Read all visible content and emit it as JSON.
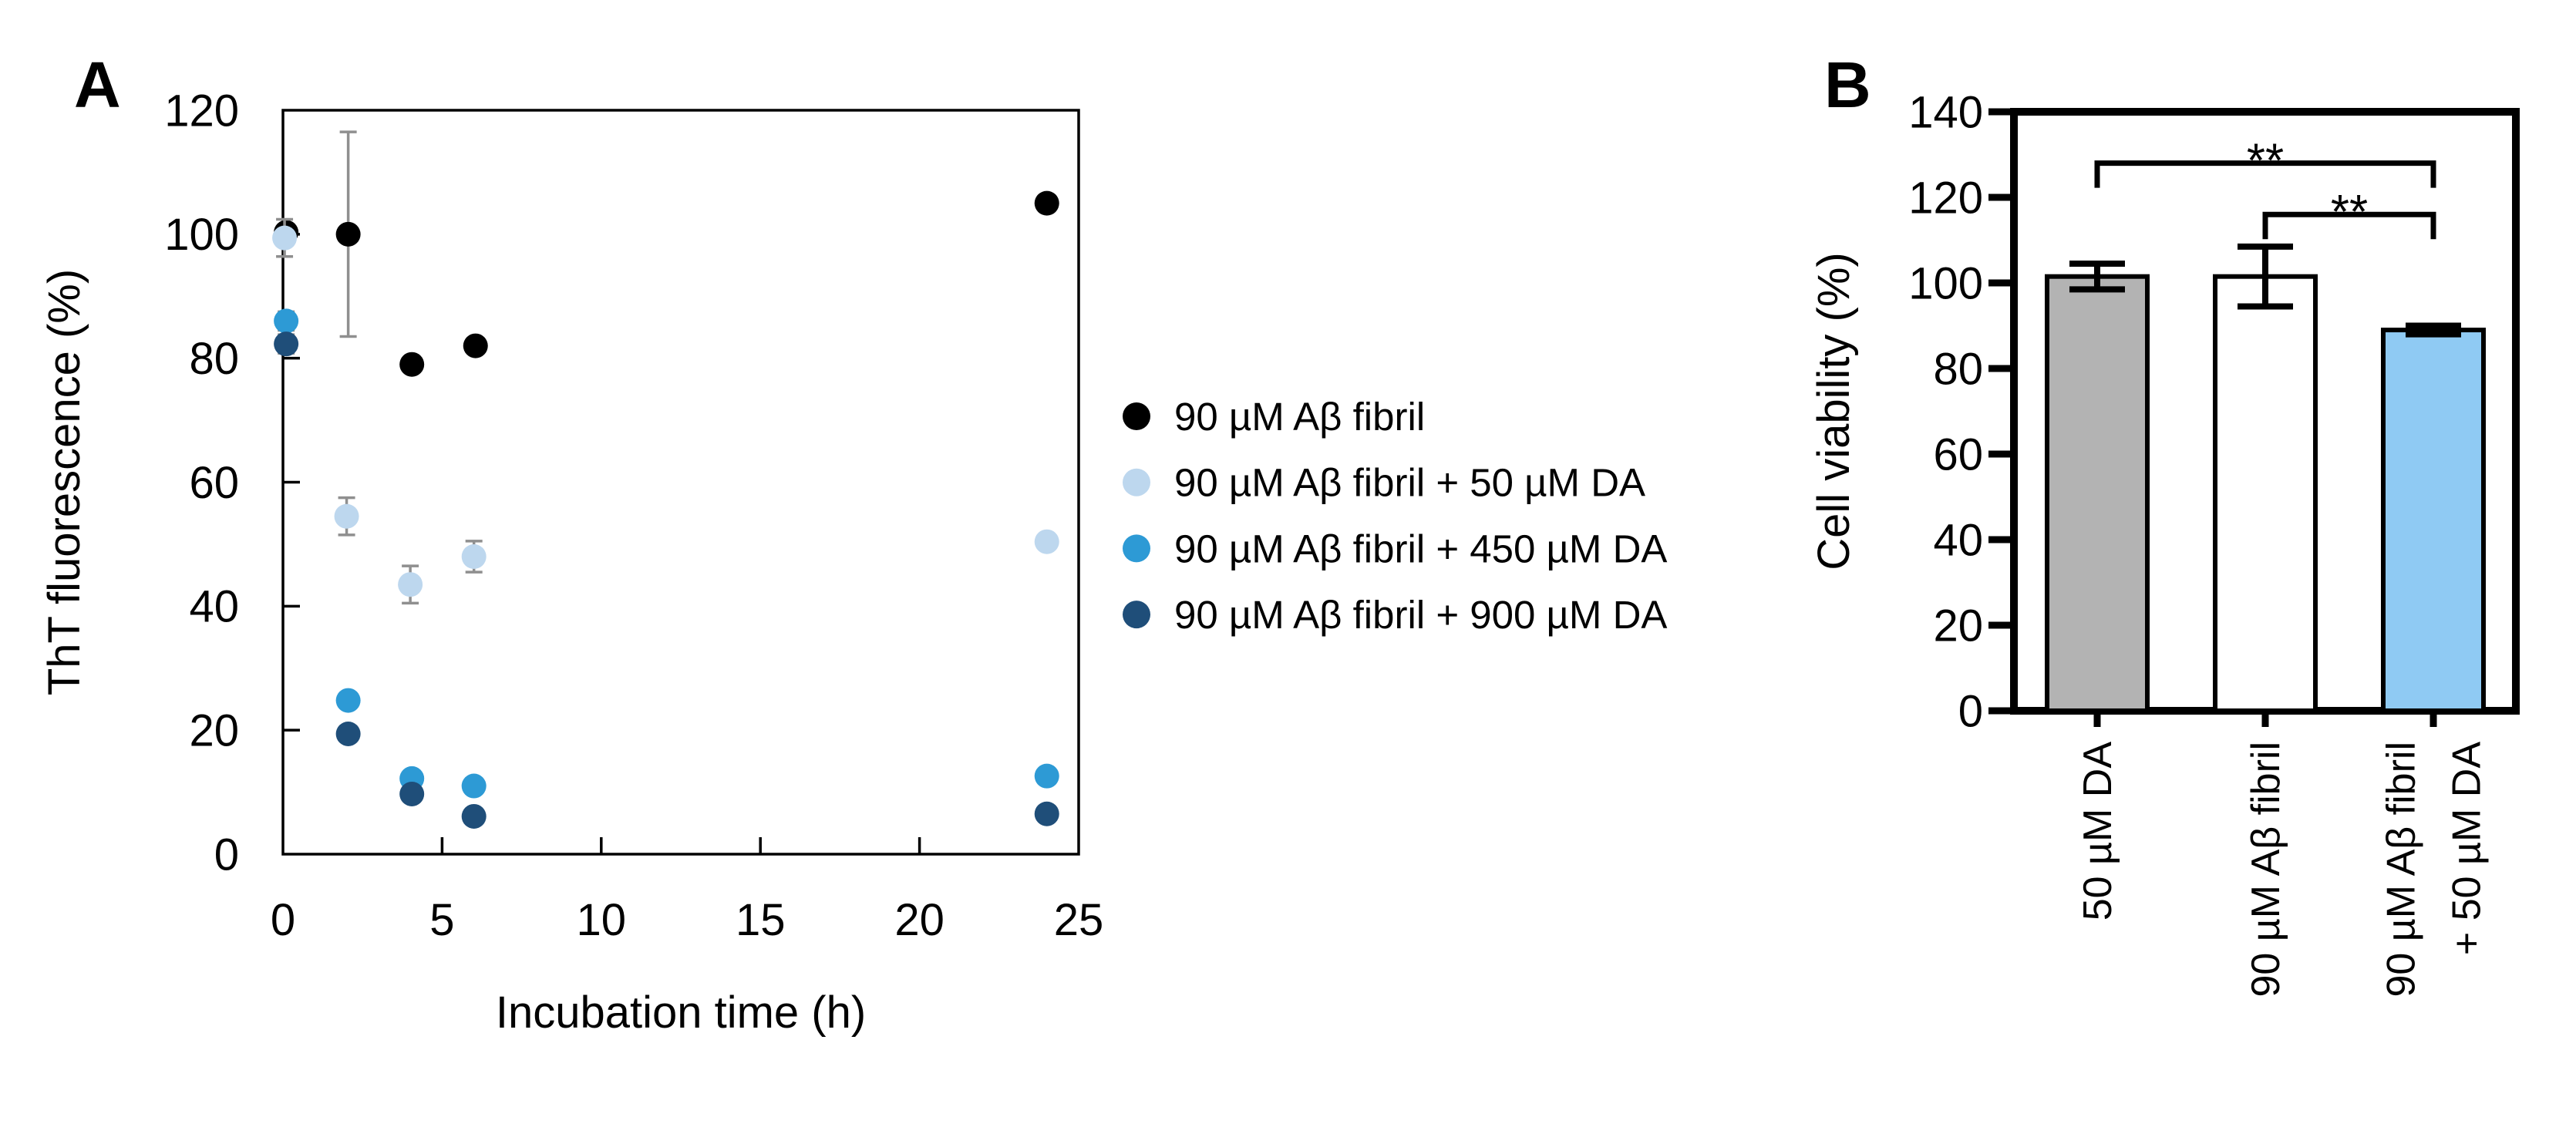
{
  "figure": {
    "background": "#ffffff"
  },
  "panels": {
    "a_label": "A",
    "b_label": "B"
  },
  "chart_data": [
    {
      "id": "panel-a",
      "type": "scatter",
      "title": "",
      "xlabel": "Incubation time (h)",
      "ylabel": "ThT fluorescence (%)",
      "xlim": [
        0,
        25
      ],
      "ylim": [
        0,
        120
      ],
      "xticks": [
        0,
        5,
        10,
        15,
        20,
        25
      ],
      "yticks": [
        0,
        20,
        40,
        60,
        80,
        100,
        120
      ],
      "grid": false,
      "legend_position": "right",
      "error_color": "#8F8F8F",
      "series": [
        {
          "name": "90 µM Aβ fibril",
          "color": "#000000",
          "points": [
            {
              "x": 0.1,
              "y": 100.3,
              "err": 0
            },
            {
              "x": 2.05,
              "y": 100.0,
              "err": 16.5
            },
            {
              "x": 4.05,
              "y": 79.0,
              "err": 0
            },
            {
              "x": 6.05,
              "y": 82.0,
              "err": 0
            },
            {
              "x": 24.0,
              "y": 105.0,
              "err": 0
            }
          ]
        },
        {
          "name": "90 µM Aβ fibril + 50 µM DA",
          "color": "#BDD7EE",
          "points": [
            {
              "x": 0.05,
              "y": 99.4,
              "err": 3
            },
            {
              "x": 2.0,
              "y": 54.5,
              "err": 3
            },
            {
              "x": 4.0,
              "y": 43.5,
              "err": 3
            },
            {
              "x": 6.0,
              "y": 48.0,
              "err": 2.5
            },
            {
              "x": 24.0,
              "y": 50.4,
              "err": 0
            }
          ]
        },
        {
          "name": "90 µM Aβ fibril + 450 µM DA",
          "color": "#2D9AD5",
          "points": [
            {
              "x": 0.1,
              "y": 86.0,
              "err": 1.5
            },
            {
              "x": 2.05,
              "y": 24.8,
              "err": 0
            },
            {
              "x": 4.05,
              "y": 12.2,
              "err": 0
            },
            {
              "x": 6.0,
              "y": 11.0,
              "err": 0
            },
            {
              "x": 24.0,
              "y": 12.6,
              "err": 0
            }
          ]
        },
        {
          "name": "90 µM Aβ fibril + 900 µM DA",
          "color": "#1F4E79",
          "points": [
            {
              "x": 0.1,
              "y": 82.3,
              "err": 1.5
            },
            {
              "x": 2.05,
              "y": 19.4,
              "err": 0
            },
            {
              "x": 4.05,
              "y": 9.7,
              "err": 0
            },
            {
              "x": 6.0,
              "y": 6.1,
              "err": 0
            },
            {
              "x": 24.0,
              "y": 6.5,
              "err": 0
            }
          ]
        }
      ]
    },
    {
      "id": "panel-b",
      "type": "bar",
      "title": "",
      "xlabel": "",
      "ylabel": "Cell viability (%)",
      "ylim": [
        0,
        140
      ],
      "yticks": [
        0,
        20,
        40,
        60,
        80,
        100,
        120,
        140
      ],
      "grid": false,
      "categories": [
        [
          "50 µM DA"
        ],
        [
          "90 µM Aβ fibril"
        ],
        [
          "90 µM Aβ fibril",
          "+ 50 µM DA"
        ]
      ],
      "values": [
        101.5,
        101.5,
        89
      ],
      "errors": [
        3,
        7,
        1
      ],
      "bar_colors": [
        "#B3B3B3",
        "#FFFFFF",
        "#8FCAF3"
      ],
      "bar_border_color": "#000000",
      "error_bar_color": "#000000",
      "significance": [
        {
          "from": 0,
          "to": 2,
          "label": "**",
          "y_value": 128
        },
        {
          "from": 1,
          "to": 2,
          "label": "**",
          "y_value": 116
        }
      ]
    }
  ]
}
